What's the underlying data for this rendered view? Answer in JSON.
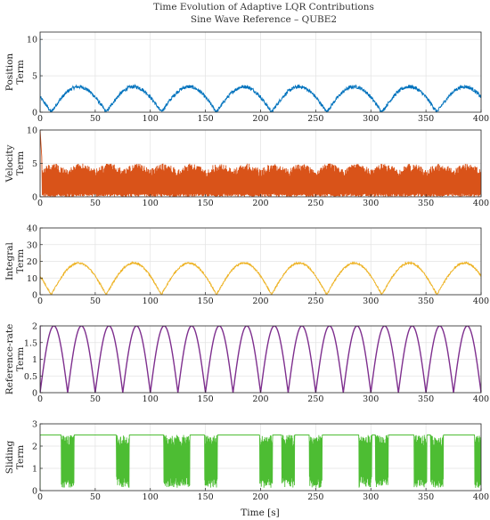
{
  "figure": {
    "title": "Time Evolution of Adaptive LQR Contributions",
    "subtitle": "Sine Wave Reference – QUBE2",
    "xlabel": "Time [s]"
  },
  "chart_data": [
    {
      "type": "line",
      "ylabel": [
        "Position",
        "Term"
      ],
      "color": "#0072BD",
      "xlim": [
        0,
        400
      ],
      "ylim": [
        0,
        11
      ],
      "xticks": [
        0,
        50,
        100,
        150,
        200,
        250,
        300,
        350,
        400
      ],
      "yticks": [
        0,
        5,
        10
      ],
      "grid": true,
      "pattern": "abs-sine",
      "series": [
        {
          "amplitude": 3.5,
          "period_s": 50,
          "phase_s": 10,
          "noise": 0.25,
          "initial_spike": 10.5
        }
      ]
    },
    {
      "type": "line",
      "ylabel": [
        "Velocity",
        "Term"
      ],
      "color": "#D95319",
      "xlim": [
        0,
        400
      ],
      "ylim": [
        0,
        10
      ],
      "xticks": [
        0,
        50,
        100,
        150,
        200,
        250,
        300,
        350,
        400
      ],
      "yticks": [
        0,
        5,
        10
      ],
      "grid": true,
      "pattern": "dense-noise",
      "series": [
        {
          "band_low": 0.5,
          "band_high": 5.0,
          "envelope_period_s": 25,
          "initial_spike": 10.0
        }
      ]
    },
    {
      "type": "line",
      "ylabel": [
        "Integral",
        "Term"
      ],
      "color": "#EDB120",
      "xlim": [
        0,
        400
      ],
      "ylim": [
        0,
        40
      ],
      "xticks": [
        0,
        50,
        100,
        150,
        200,
        250,
        300,
        350,
        400
      ],
      "yticks": [
        0,
        10,
        20,
        30,
        40
      ],
      "grid": true,
      "pattern": "abs-sine",
      "series": [
        {
          "amplitude": 19,
          "period_s": 50,
          "phase_s": 10,
          "noise": 0.5,
          "initial_spike": 24
        }
      ]
    },
    {
      "type": "line",
      "ylabel": [
        "Reference-rate",
        "Term"
      ],
      "color": "#7E2F8E",
      "xlim": [
        0,
        400
      ],
      "ylim": [
        0,
        2
      ],
      "xticks": [
        0,
        50,
        100,
        150,
        200,
        250,
        300,
        350,
        400
      ],
      "yticks": [
        0,
        0.5,
        1,
        1.5,
        2
      ],
      "grid": true,
      "pattern": "abs-sine",
      "series": [
        {
          "amplitude": 2,
          "period_s": 25,
          "phase_s": 0,
          "noise": 0,
          "initial_spike": 2
        }
      ]
    },
    {
      "type": "line",
      "ylabel": [
        "Sliding",
        "Term"
      ],
      "color": "#4DBD33",
      "xlim": [
        0,
        400
      ],
      "ylim": [
        0,
        3
      ],
      "xticks": [
        0,
        50,
        100,
        150,
        200,
        250,
        300,
        350,
        400
      ],
      "yticks": [
        0,
        1,
        2,
        3
      ],
      "grid": true,
      "pattern": "saturated-chatter",
      "series": [
        {
          "saturation": 2.5,
          "chatter_centers_s": [
            25,
            75,
            118,
            130,
            155,
            205,
            225,
            250,
            295,
            310,
            345,
            360,
            400
          ],
          "chatter_width_s": 12
        }
      ]
    }
  ]
}
